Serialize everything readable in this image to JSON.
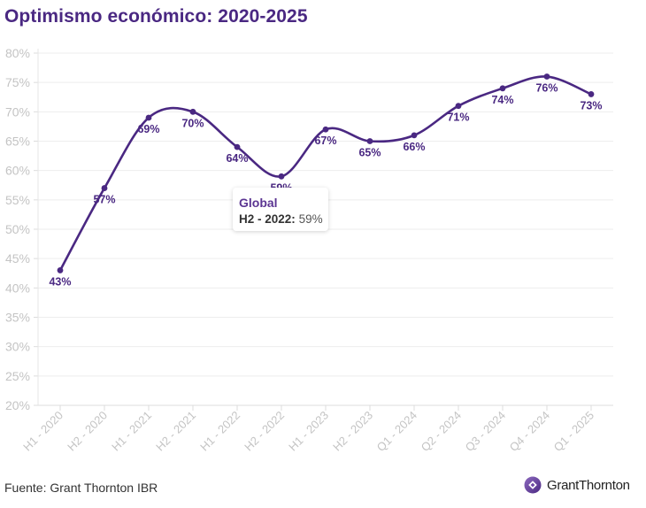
{
  "colors": {
    "title": "#4a2882",
    "series": "#4a2882",
    "grid": "#ededed",
    "tick": "#c4c4c4",
    "tooltip_series": "#5b3592"
  },
  "footer": {
    "source": "Fuente: Grant Thornton IBR",
    "logo_text": "GrantThornton",
    "logo_icon": "grant-thornton-logo-icon"
  },
  "tooltip": {
    "series": "Global",
    "category": "H2 - 2022:",
    "value": "59%"
  },
  "chart_data": {
    "type": "line",
    "title": "Optimismo económico: 2020-2025",
    "xlabel": "",
    "ylabel": "",
    "categories": [
      "H1 - 2020",
      "H2 - 2020",
      "H1 - 2021",
      "H2 - 2021",
      "H1 - 2022",
      "H2 - 2022",
      "H1 - 2023",
      "H2 - 2023",
      "Q1 - 2024",
      "Q2 - 2024",
      "Q3 - 2024",
      "Q4 - 2024",
      "Q1 - 2025"
    ],
    "series": [
      {
        "name": "Global",
        "values": [
          43,
          57,
          69,
          70,
          64,
          59,
          67,
          65,
          66,
          71,
          74,
          76,
          73
        ]
      }
    ],
    "data_labels": [
      "43%",
      "57%",
      "69%",
      "70%",
      "64%",
      "59%",
      "67%",
      "65%",
      "66%",
      "71%",
      "74%",
      "76%",
      "73%"
    ],
    "ylim": [
      20,
      80
    ],
    "yticks": [
      20,
      25,
      30,
      35,
      40,
      45,
      50,
      55,
      60,
      65,
      70,
      75,
      80
    ],
    "ytick_labels": [
      "20%",
      "25%",
      "30%",
      "35%",
      "40%",
      "45%",
      "50%",
      "55%",
      "60%",
      "65%",
      "70%",
      "75%",
      "80%"
    ],
    "grid": true,
    "legend": "none",
    "smooth": true
  }
}
